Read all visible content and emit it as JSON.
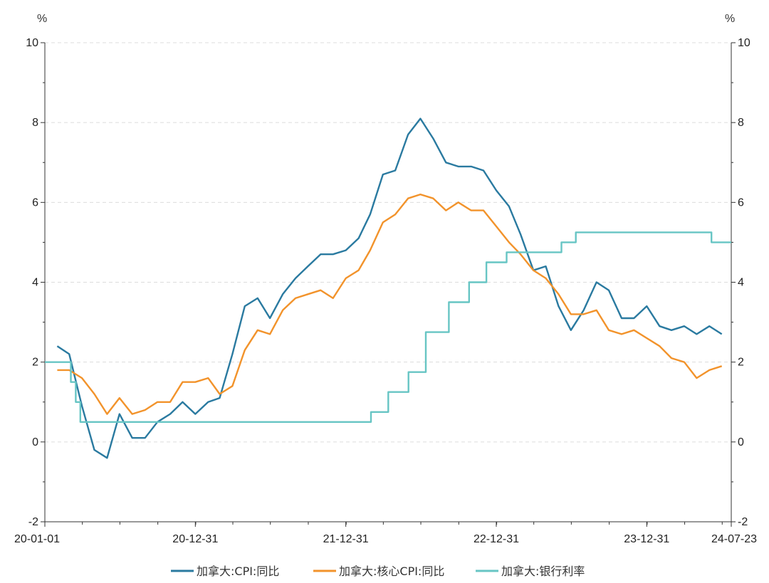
{
  "chart_data": {
    "type": "line",
    "left_axis_unit": "%",
    "right_axis_unit": "%",
    "ylim": [
      -2,
      10
    ],
    "y_ticks": [
      -2,
      0,
      2,
      4,
      6,
      8,
      10
    ],
    "y_tick_labels": [
      "-2",
      "0",
      "2",
      "4",
      "6",
      "8",
      "10"
    ],
    "x_range": [
      "2020-01-01",
      "2024-07-23"
    ],
    "x_tick_labels": [
      {
        "date": "2020-01-01",
        "label": "20-01-01"
      },
      {
        "date": "2020-12-31",
        "label": "20-12-31"
      },
      {
        "date": "2021-12-31",
        "label": "21-12-31"
      },
      {
        "date": "2022-12-31",
        "label": "22-12-31"
      },
      {
        "date": "2023-12-31",
        "label": "23-12-31"
      },
      {
        "date": "2024-07-23",
        "label": "24-07-23"
      }
    ],
    "x_minor_ticks": [
      "2020-07-01",
      "2021-07-01",
      "2022-07-01",
      "2023-07-01"
    ],
    "grid": "horizontal dashed",
    "legend_position": "bottom",
    "series": [
      {
        "name": "加拿大:CPI:同比",
        "color": "#2a7aa0",
        "style": "line",
        "dates": [
          "2020-01-31",
          "2020-02-29",
          "2020-03-31",
          "2020-04-30",
          "2020-05-31",
          "2020-06-30",
          "2020-07-31",
          "2020-08-31",
          "2020-09-30",
          "2020-10-31",
          "2020-11-30",
          "2020-12-31",
          "2021-01-31",
          "2021-02-28",
          "2021-03-31",
          "2021-04-30",
          "2021-05-31",
          "2021-06-30",
          "2021-07-31",
          "2021-08-31",
          "2021-09-30",
          "2021-10-31",
          "2021-11-30",
          "2021-12-31",
          "2022-01-31",
          "2022-02-28",
          "2022-03-31",
          "2022-04-30",
          "2022-05-31",
          "2022-06-30",
          "2022-07-31",
          "2022-08-31",
          "2022-09-30",
          "2022-10-31",
          "2022-11-30",
          "2022-12-31",
          "2023-01-31",
          "2023-02-28",
          "2023-03-31",
          "2023-04-30",
          "2023-05-31",
          "2023-06-30",
          "2023-07-31",
          "2023-08-31",
          "2023-09-30",
          "2023-10-31",
          "2023-11-30",
          "2023-12-31",
          "2024-01-31",
          "2024-02-29",
          "2024-03-31",
          "2024-04-30",
          "2024-05-31",
          "2024-06-30"
        ],
        "values": [
          2.4,
          2.2,
          0.9,
          -0.2,
          -0.4,
          0.7,
          0.1,
          0.1,
          0.5,
          0.7,
          1.0,
          0.7,
          1.0,
          1.1,
          2.2,
          3.4,
          3.6,
          3.1,
          3.7,
          4.1,
          4.4,
          4.7,
          4.7,
          4.8,
          5.1,
          5.7,
          6.7,
          6.8,
          7.7,
          8.1,
          7.6,
          7.0,
          6.9,
          6.9,
          6.8,
          6.3,
          5.9,
          5.2,
          4.3,
          4.4,
          3.4,
          2.8,
          3.3,
          4.0,
          3.8,
          3.1,
          3.1,
          3.4,
          2.9,
          2.8,
          2.9,
          2.7,
          2.9,
          2.7
        ]
      },
      {
        "name": "加拿大:核心CPI:同比",
        "color": "#f2932b",
        "style": "line",
        "dates": [
          "2020-01-31",
          "2020-02-29",
          "2020-03-31",
          "2020-04-30",
          "2020-05-31",
          "2020-06-30",
          "2020-07-31",
          "2020-08-31",
          "2020-09-30",
          "2020-10-31",
          "2020-11-30",
          "2020-12-31",
          "2021-01-31",
          "2021-02-28",
          "2021-03-31",
          "2021-04-30",
          "2021-05-31",
          "2021-06-30",
          "2021-07-31",
          "2021-08-31",
          "2021-09-30",
          "2021-10-31",
          "2021-11-30",
          "2021-12-31",
          "2022-01-31",
          "2022-02-28",
          "2022-03-31",
          "2022-04-30",
          "2022-05-31",
          "2022-06-30",
          "2022-07-31",
          "2022-08-31",
          "2022-09-30",
          "2022-10-31",
          "2022-11-30",
          "2022-12-31",
          "2023-01-31",
          "2023-02-28",
          "2023-03-31",
          "2023-04-30",
          "2023-05-31",
          "2023-06-30",
          "2023-07-31",
          "2023-08-31",
          "2023-09-30",
          "2023-10-31",
          "2023-11-30",
          "2023-12-31",
          "2024-01-31",
          "2024-02-29",
          "2024-03-31",
          "2024-04-30",
          "2024-05-31",
          "2024-06-30"
        ],
        "values": [
          1.8,
          1.8,
          1.6,
          1.2,
          0.7,
          1.1,
          0.7,
          0.8,
          1.0,
          1.0,
          1.5,
          1.5,
          1.6,
          1.2,
          1.4,
          2.3,
          2.8,
          2.7,
          3.3,
          3.6,
          3.7,
          3.8,
          3.6,
          4.1,
          4.3,
          4.8,
          5.5,
          5.7,
          6.1,
          6.2,
          6.1,
          5.8,
          6.0,
          5.8,
          5.8,
          5.4,
          5.0,
          4.7,
          4.3,
          4.1,
          3.7,
          3.2,
          3.2,
          3.3,
          2.8,
          2.7,
          2.8,
          2.6,
          2.4,
          2.1,
          2.0,
          1.6,
          1.8,
          1.9
        ]
      },
      {
        "name": "加拿大:银行利率",
        "color": "#67c5c4",
        "style": "step",
        "steps": [
          {
            "date": "2020-01-01",
            "value": 2.0
          },
          {
            "date": "2020-03-04",
            "value": 1.5
          },
          {
            "date": "2020-03-16",
            "value": 1.0
          },
          {
            "date": "2020-03-27",
            "value": 0.5
          },
          {
            "date": "2022-03-02",
            "value": 0.75
          },
          {
            "date": "2022-04-13",
            "value": 1.25
          },
          {
            "date": "2022-06-01",
            "value": 1.75
          },
          {
            "date": "2022-07-13",
            "value": 2.75
          },
          {
            "date": "2022-09-07",
            "value": 3.5
          },
          {
            "date": "2022-10-26",
            "value": 4.0
          },
          {
            "date": "2022-12-07",
            "value": 4.5
          },
          {
            "date": "2023-01-25",
            "value": 4.75
          },
          {
            "date": "2023-06-07",
            "value": 5.0
          },
          {
            "date": "2023-07-12",
            "value": 5.25
          },
          {
            "date": "2024-06-05",
            "value": 5.0
          },
          {
            "date": "2024-07-23",
            "value": 5.0
          }
        ]
      }
    ]
  }
}
